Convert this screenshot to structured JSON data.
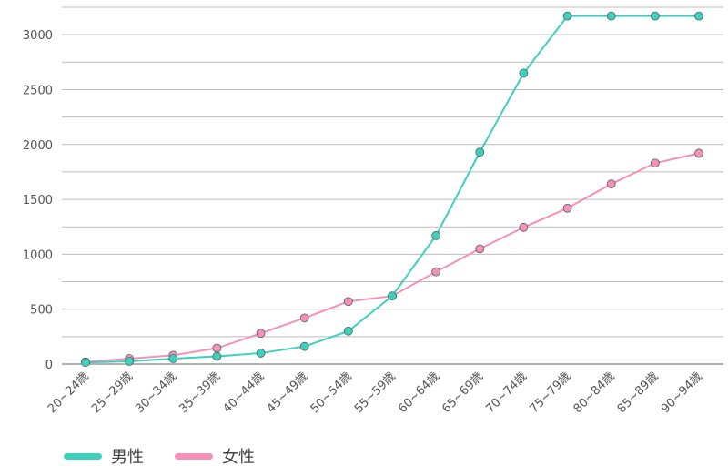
{
  "chart_data": {
    "type": "line",
    "categories": [
      "20~24歳",
      "25~29歳",
      "30~34歳",
      "35~39歳",
      "40~44歳",
      "45~49歳",
      "50~54歳",
      "55~59歳",
      "60~64歳",
      "65~69歳",
      "70~74歳",
      "75~79歳",
      "80~84歳",
      "85~89歳",
      "90~94歳"
    ],
    "series": [
      {
        "name": "男性",
        "color": "#3ecfbf",
        "values": [
          15,
          25,
          50,
          70,
          100,
          160,
          300,
          620,
          1170,
          1930,
          2650,
          3170,
          3170,
          3170,
          3170
        ]
      },
      {
        "name": "女性",
        "color": "#f591b8",
        "values": [
          20,
          50,
          80,
          145,
          280,
          420,
          570,
          620,
          840,
          1050,
          1245,
          1420,
          1640,
          1830,
          1920
        ]
      }
    ],
    "yticks": [
      0,
      500,
      1000,
      1500,
      2000,
      2500,
      3000
    ],
    "ylim": [
      0,
      3250
    ],
    "grid": true,
    "legend_position": "bottom-left"
  }
}
